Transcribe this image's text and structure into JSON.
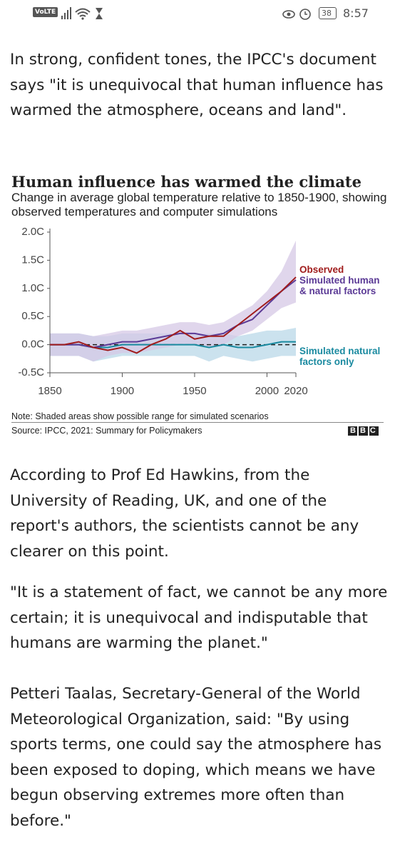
{
  "status_bar": {
    "network": "VoLTE",
    "battery": "38",
    "time": "8:57"
  },
  "article": {
    "intro": "In strong, confident tones, the IPCC's document says \"it is unequivocal that human influence has warmed the atmosphere, oceans and land\".",
    "paragraphs": [
      "According to Prof Ed Hawkins, from the University of Reading, UK, and one of the report's authors, the scientists cannot be any clearer on this point.",
      "\"It is a statement of fact, we cannot be any more certain; it is unequivocal and indisputable that humans are warming the planet.\"",
      "Petteri Taalas, Secretary-General of the World Meteorological Organization, said: \"By using sports terms, one could say the atmosphere has been exposed to doping, which means we have begun observing extremes more often than before.\""
    ]
  },
  "chart_data": {
    "type": "line",
    "title": "Human influence has warmed the climate",
    "subtitle": "Change in average global temperature relative to 1850-1900, showing observed temperatures and computer simulations",
    "x": [
      1850,
      1860,
      1870,
      1880,
      1890,
      1900,
      1910,
      1920,
      1930,
      1940,
      1950,
      1960,
      1970,
      1980,
      1990,
      2000,
      2010,
      2020
    ],
    "series": [
      {
        "name": "Simulated natural factors only",
        "color": "#1a8aa0",
        "band_color": "#b9d8e8",
        "values": [
          0,
          0,
          0,
          -0.05,
          -0.05,
          0,
          0,
          0,
          0,
          0,
          0,
          -0.05,
          0,
          -0.05,
          -0.05,
          0,
          0.05,
          0.05
        ],
        "low": [
          -0.2,
          -0.2,
          -0.2,
          -0.3,
          -0.25,
          -0.2,
          -0.2,
          -0.2,
          -0.2,
          -0.2,
          -0.2,
          -0.3,
          -0.2,
          -0.25,
          -0.3,
          -0.25,
          -0.2,
          -0.2
        ],
        "high": [
          0.2,
          0.2,
          0.2,
          0.15,
          0.15,
          0.2,
          0.2,
          0.2,
          0.2,
          0.2,
          0.2,
          0.2,
          0.2,
          0.15,
          0.2,
          0.25,
          0.25,
          0.3
        ]
      },
      {
        "name": "Simulated human & natural factors",
        "color": "#5b3a96",
        "band_color": "#d6c8e6",
        "values": [
          0,
          0,
          0,
          -0.05,
          0,
          0.05,
          0.05,
          0.1,
          0.15,
          0.2,
          0.2,
          0.15,
          0.2,
          0.35,
          0.45,
          0.7,
          0.95,
          1.15
        ],
        "low": [
          -0.2,
          -0.2,
          -0.2,
          -0.3,
          -0.2,
          -0.15,
          -0.15,
          -0.1,
          -0.05,
          0,
          0,
          -0.05,
          0,
          0.15,
          0.25,
          0.45,
          0.65,
          0.75
        ],
        "high": [
          0.2,
          0.2,
          0.2,
          0.15,
          0.2,
          0.25,
          0.25,
          0.3,
          0.35,
          0.4,
          0.4,
          0.35,
          0.4,
          0.55,
          0.7,
          0.95,
          1.3,
          1.85
        ]
      },
      {
        "name": "Observed",
        "color": "#a01c1c",
        "values": [
          0,
          0,
          0.05,
          -0.05,
          -0.1,
          -0.05,
          -0.15,
          0,
          0.1,
          0.25,
          0.1,
          0.15,
          0.15,
          0.35,
          0.55,
          0.75,
          0.95,
          1.2
        ]
      }
    ],
    "xlim": [
      1850,
      2020
    ],
    "xticks": [
      1850,
      1900,
      1950,
      2000,
      2020
    ],
    "ylim": [
      -0.5,
      2.0
    ],
    "yticks": [
      {
        "value": 2.0,
        "label": "2.0C"
      },
      {
        "value": 1.5,
        "label": "1.5C"
      },
      {
        "value": 1.0,
        "label": "1.0C"
      },
      {
        "value": 0.5,
        "label": "0.5C"
      },
      {
        "value": 0.0,
        "label": "0.0C"
      },
      {
        "value": -0.5,
        "label": "-0.5C"
      }
    ],
    "zero_line_dashed": true,
    "note": "Note: Shaded areas show possible range for simulated scenarios",
    "source": "Source: IPCC, 2021: Summary for Policymakers",
    "logo": "BBC"
  }
}
